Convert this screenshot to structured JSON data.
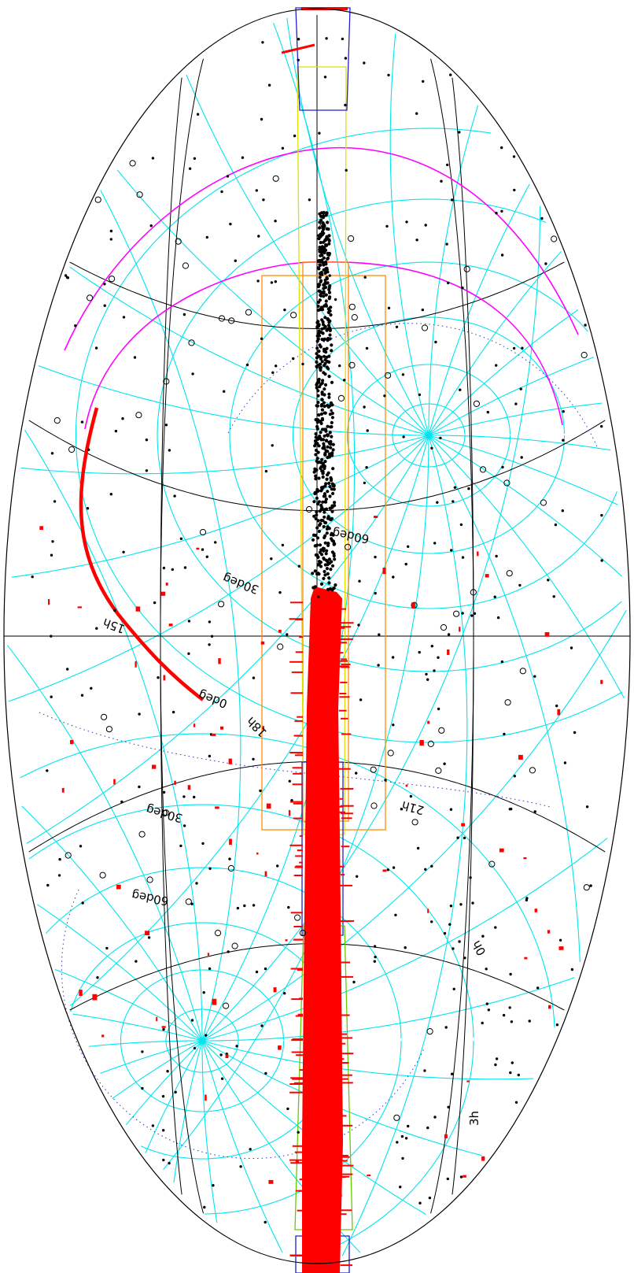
{
  "map": {
    "projection": "aitoff",
    "orientation": "rotated 90deg",
    "colors": {
      "background": "#ffffff",
      "outline": "#000000",
      "equatorial_grid": "#00e5ee",
      "galactic_grid": "#000000",
      "ecliptic": "#0000cc",
      "survey_strip": "#ff0000",
      "sources": "#000000",
      "open_markers": "#000000",
      "red_markers": "#ff0000",
      "magenta_curve": "#ff00ff",
      "orange_box": "#ff8c00",
      "yellow_box": "#e8e800",
      "blue_box": "#2020cc",
      "green_box": "#66cc00"
    },
    "labels": {
      "dec_60_upper": "60deg",
      "dec_30_upper": "30deg",
      "dec_0": "0deg",
      "dec_30_lower": "30deg",
      "dec_60_lower": "60deg",
      "ra_15h": "15h",
      "ra_18h": "18h",
      "ra_21h": "21h",
      "ra_0h": "0h",
      "ra_3h": "3h"
    }
  }
}
